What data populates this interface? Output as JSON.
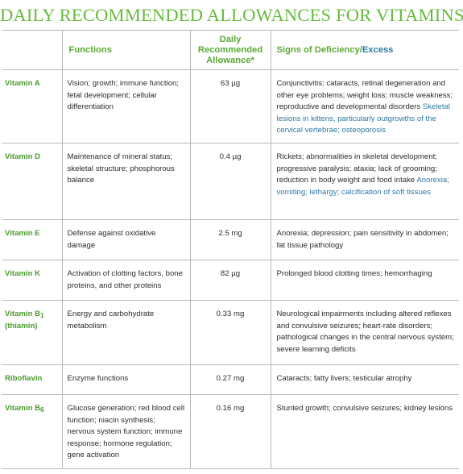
{
  "title": "DAILY RECOMMENDED ALLOWANCES FOR VITAMINS",
  "colors": {
    "heading_green": "#5aaa35",
    "title_green": "#66bb3c",
    "excess_blue": "#2e79a6"
  },
  "headers": {
    "functions": "Functions",
    "rda_line1": "Daily",
    "rda_line2": "Recommended",
    "rda_line3": "Allowance*",
    "signs_deficiency": "Signs of Deficiency/",
    "signs_excess": "Excess"
  },
  "rows": [
    {
      "name": "Vitamin A",
      "name_sub": "",
      "name_line2": "",
      "functions": "Vision; growth; immune function; fetal development; cellular differentiation",
      "rda": "63 µg",
      "deficiency": "Conjunctivitis; cataracts, retinal degeneration and other eye problems; weight loss; muscle weakness; reproductive and developmental disorders",
      "excess": "Skeletal lesions in kittens, particularly outgrowths of the cervical vertebrae; osteoporosis"
    },
    {
      "name": "Vitamin D",
      "name_sub": "",
      "name_line2": "",
      "functions": "Maintenance of mineral status; skeletal structure; phosphorous balance",
      "rda": "0.4 µg",
      "deficiency": "Rickets; abnormalities in skeletal development; progressive paralysis; ataxia; lack of grooming; reduction in body weight and food intake",
      "excess": "Anorexia; vomiting; lethargy; calcification of soft tissues"
    },
    {
      "name": "Vitamin E",
      "name_sub": "",
      "name_line2": "",
      "functions": "Defense against oxidative damage",
      "rda": "2.5 mg",
      "deficiency": "Anorexia; depression; pain sensitivity in abdomen; fat tissue pathology",
      "excess": ""
    },
    {
      "name": "Vitamin K",
      "name_sub": "",
      "name_line2": "",
      "functions": "Activation of clotting factors, bone proteins, and other proteins",
      "rda": "82 µg",
      "deficiency": "Prolonged blood clotting times; hemorrhaging",
      "excess": ""
    },
    {
      "name": "Vitamin B",
      "name_sub": "1",
      "name_line2": "(thiamin)",
      "functions": "Energy and carbohydrate metabolism",
      "rda": "0.33 mg",
      "deficiency": "Neurological impairments including altered reflexes and convulsive seizures; heart-rate disorders; pathological changes in the central nervous system; severe learning deficits",
      "excess": ""
    },
    {
      "name": "Riboflavin",
      "name_sub": "",
      "name_line2": "",
      "functions": "Enzyme functions",
      "rda": "0.27 mg",
      "deficiency": "Cataracts; fatty livers; testicular atrophy",
      "excess": ""
    },
    {
      "name": "Vitamin B",
      "name_sub": "6",
      "name_line2": "",
      "functions": "Glucose generation; red blood cell function; niacin synthesis; nervous system function; immune response; hormone regulation; gene activation",
      "rda": "0.16 mg",
      "deficiency": "Stunted growth; convulsive seizures; kidney lesions",
      "excess": ""
    }
  ]
}
